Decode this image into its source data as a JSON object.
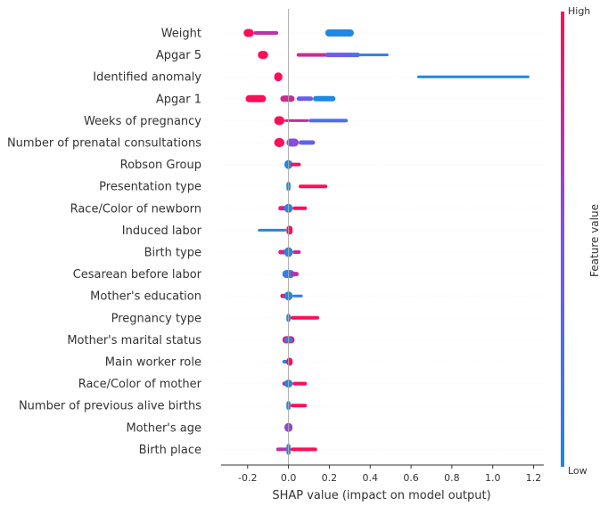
{
  "chart_data": {
    "type": "scatter",
    "subtype": "shap-beeswarm",
    "xlabel": "SHAP value (impact on model output)",
    "xlim": [
      -0.33,
      1.25
    ],
    "xticks": [
      "-0.2",
      "0.0",
      "0.2",
      "0.4",
      "0.6",
      "0.8",
      "1.0",
      "1.2"
    ],
    "xtick_values": [
      -0.2,
      0.0,
      0.2,
      0.4,
      0.6,
      0.8,
      1.0,
      1.2
    ],
    "colorbar": {
      "title": "Feature value",
      "high_label": "High",
      "low_label": "Low",
      "high_color": "#ff0d57",
      "low_color": "#1e88e5"
    },
    "features": [
      {
        "name": "Weight",
        "clusters": [
          {
            "lo": -0.22,
            "hi": -0.17,
            "c": 1.0,
            "h": 9
          },
          {
            "lo": -0.17,
            "hi": -0.05,
            "c": 0.75,
            "h": 4
          },
          {
            "lo": 0.18,
            "hi": 0.32,
            "c": 0.0,
            "h": 8
          }
        ]
      },
      {
        "name": "Apgar 5",
        "clusters": [
          {
            "lo": -0.15,
            "hi": -0.1,
            "c": 1.0,
            "h": 9
          },
          {
            "lo": 0.04,
            "hi": 0.2,
            "c": 0.8,
            "h": 4
          },
          {
            "lo": 0.18,
            "hi": 0.35,
            "c": 0.4,
            "h": 5
          },
          {
            "lo": 0.3,
            "hi": 0.49,
            "c": 0.1,
            "h": 3
          }
        ]
      },
      {
        "name": "Identified anomaly",
        "clusters": [
          {
            "lo": -0.07,
            "hi": -0.03,
            "c": 1.0,
            "h": 10
          },
          {
            "lo": 0.63,
            "hi": 1.18,
            "c": 0.0,
            "h": 3
          }
        ]
      },
      {
        "name": "Apgar 1",
        "clusters": [
          {
            "lo": -0.21,
            "hi": -0.11,
            "c": 1.0,
            "h": 8
          },
          {
            "lo": -0.04,
            "hi": 0.03,
            "c": 0.8,
            "h": 7
          },
          {
            "lo": 0.04,
            "hi": 0.12,
            "c": 0.4,
            "h": 5
          },
          {
            "lo": 0.12,
            "hi": 0.23,
            "c": 0.0,
            "h": 6
          }
        ]
      },
      {
        "name": "Weeks of pregnancy",
        "clusters": [
          {
            "lo": -0.07,
            "hi": -0.02,
            "c": 1.0,
            "h": 10
          },
          {
            "lo": -0.02,
            "hi": 0.1,
            "c": 0.8,
            "h": 3
          },
          {
            "lo": 0.1,
            "hi": 0.29,
            "c": 0.25,
            "h": 4
          }
        ]
      },
      {
        "name": "Number of prenatal consultations",
        "clusters": [
          {
            "lo": -0.07,
            "hi": -0.02,
            "c": 1.0,
            "h": 10
          },
          {
            "lo": -0.01,
            "hi": 0.05,
            "c": 0.55,
            "h": 9
          },
          {
            "lo": 0.05,
            "hi": 0.13,
            "c": 0.35,
            "h": 5
          }
        ]
      },
      {
        "name": "Robson Group",
        "clusters": [
          {
            "lo": -0.02,
            "hi": 0.02,
            "c": 0.0,
            "h": 10
          },
          {
            "lo": 0.01,
            "hi": 0.06,
            "c": 1.0,
            "h": 4
          }
        ]
      },
      {
        "name": "Presentation type",
        "clusters": [
          {
            "lo": -0.01,
            "hi": 0.01,
            "c": 0.0,
            "h": 10
          },
          {
            "lo": 0.05,
            "hi": 0.19,
            "c": 1.0,
            "h": 4
          }
        ]
      },
      {
        "name": "Race/Color of newborn",
        "clusters": [
          {
            "lo": -0.05,
            "hi": 0.02,
            "c": 0.85,
            "h": 5
          },
          {
            "lo": -0.02,
            "hi": 0.02,
            "c": 0.0,
            "h": 10
          },
          {
            "lo": 0.02,
            "hi": 0.09,
            "c": 1.0,
            "h": 4
          }
        ]
      },
      {
        "name": "Induced labor",
        "clusters": [
          {
            "lo": -0.15,
            "hi": -0.01,
            "c": 0.0,
            "h": 3
          },
          {
            "lo": -0.01,
            "hi": 0.02,
            "c": 1.0,
            "h": 10
          }
        ]
      },
      {
        "name": "Birth type",
        "clusters": [
          {
            "lo": -0.05,
            "hi": 0.02,
            "c": 0.85,
            "h": 5
          },
          {
            "lo": -0.02,
            "hi": 0.02,
            "c": 0.0,
            "h": 11
          },
          {
            "lo": 0.02,
            "hi": 0.06,
            "c": 0.8,
            "h": 4
          }
        ]
      },
      {
        "name": "Cesarean before labor",
        "clusters": [
          {
            "lo": -0.03,
            "hi": 0.03,
            "c": 0.1,
            "h": 9
          },
          {
            "lo": 0.01,
            "hi": 0.05,
            "c": 0.75,
            "h": 5
          }
        ]
      },
      {
        "name": "Mother's education",
        "clusters": [
          {
            "lo": -0.04,
            "hi": 0.02,
            "c": 0.9,
            "h": 5
          },
          {
            "lo": -0.02,
            "hi": 0.02,
            "c": 0.0,
            "h": 10
          },
          {
            "lo": 0.02,
            "hi": 0.07,
            "c": 0.1,
            "h": 3
          }
        ]
      },
      {
        "name": "Pregnancy type",
        "clusters": [
          {
            "lo": -0.01,
            "hi": 0.01,
            "c": 0.0,
            "h": 9
          },
          {
            "lo": 0.01,
            "hi": 0.15,
            "c": 1.0,
            "h": 4
          }
        ]
      },
      {
        "name": "Mother's marital status",
        "clusters": [
          {
            "lo": -0.03,
            "hi": 0.03,
            "c": 0.9,
            "h": 8
          },
          {
            "lo": -0.02,
            "hi": 0.02,
            "c": 0.0,
            "h": 6
          }
        ]
      },
      {
        "name": "Main worker role",
        "clusters": [
          {
            "lo": -0.03,
            "hi": 0.0,
            "c": 0.0,
            "h": 4
          },
          {
            "lo": -0.01,
            "hi": 0.02,
            "c": 1.0,
            "h": 9
          }
        ]
      },
      {
        "name": "Race/Color of mother",
        "clusters": [
          {
            "lo": -0.03,
            "hi": 0.02,
            "c": 0.85,
            "h": 5
          },
          {
            "lo": -0.02,
            "hi": 0.02,
            "c": 0.0,
            "h": 9
          },
          {
            "lo": 0.02,
            "hi": 0.09,
            "c": 1.0,
            "h": 4
          }
        ]
      },
      {
        "name": "Number of previous alive births",
        "clusters": [
          {
            "lo": -0.01,
            "hi": 0.01,
            "c": 0.0,
            "h": 10
          },
          {
            "lo": 0.01,
            "hi": 0.09,
            "c": 1.0,
            "h": 4
          }
        ]
      },
      {
        "name": "Mother's age",
        "clusters": [
          {
            "lo": -0.02,
            "hi": 0.02,
            "c": 0.6,
            "h": 10
          }
        ]
      },
      {
        "name": "Birth place",
        "clusters": [
          {
            "lo": -0.06,
            "hi": 0.01,
            "c": 0.75,
            "h": 4
          },
          {
            "lo": -0.01,
            "hi": 0.01,
            "c": 0.0,
            "h": 12
          },
          {
            "lo": 0.01,
            "hi": 0.14,
            "c": 1.0,
            "h": 4
          }
        ]
      }
    ]
  }
}
